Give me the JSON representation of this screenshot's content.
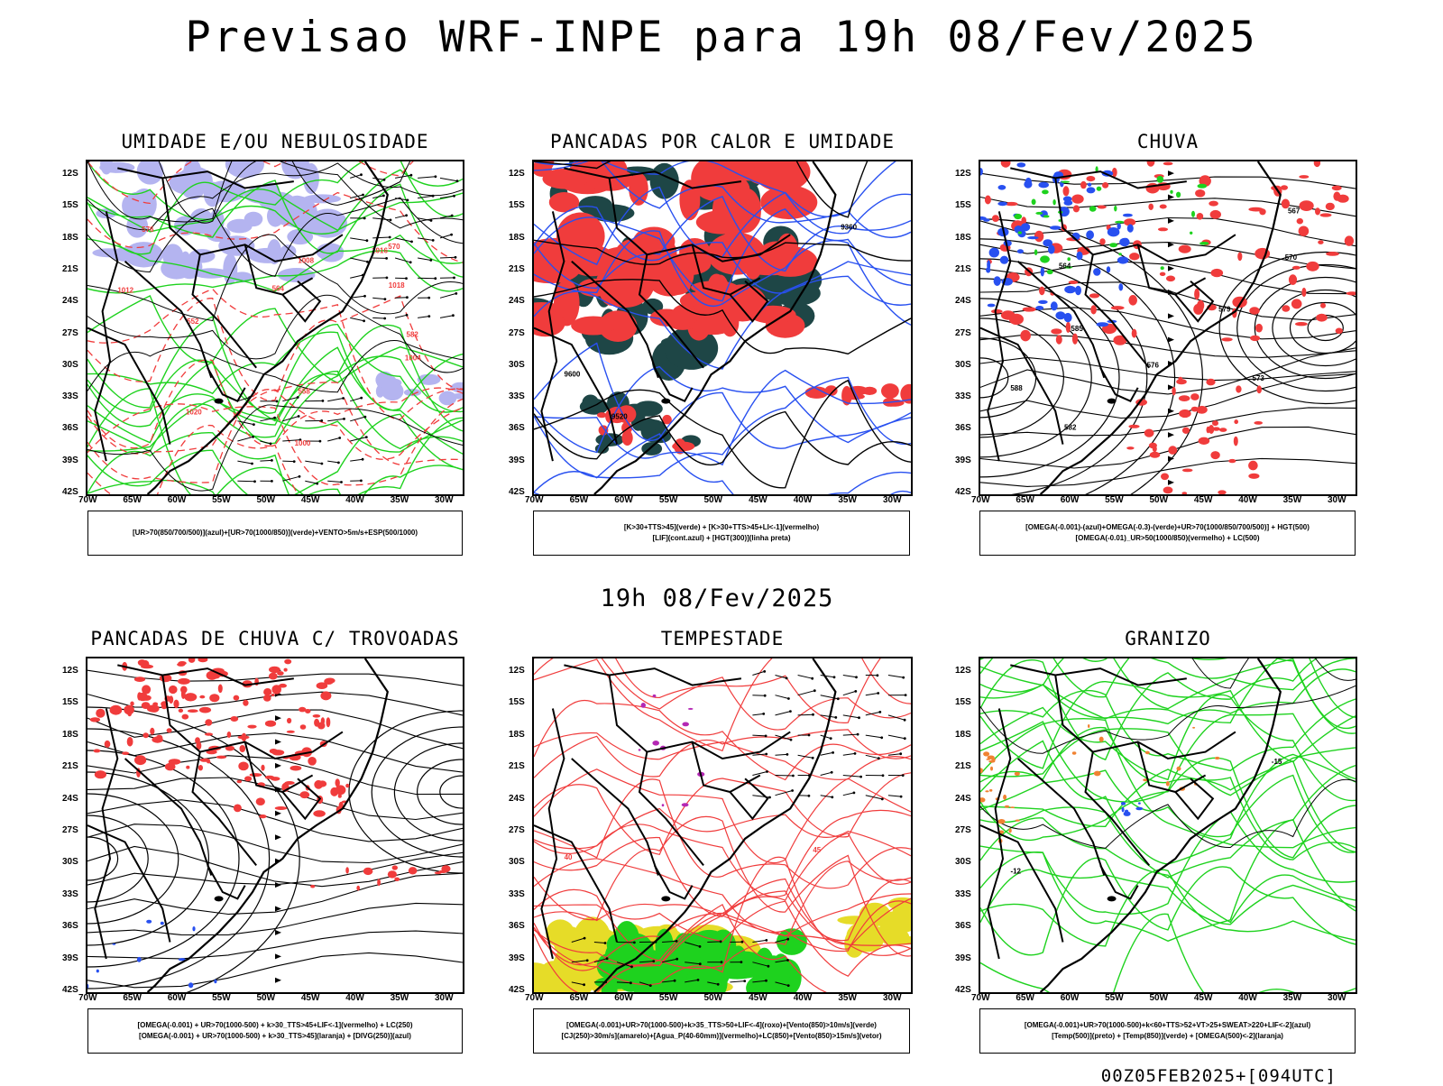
{
  "page": {
    "title": "Previsao WRF-INPE  para 19h 08/Fev/2025",
    "mid_title": "19h 08/Fev/2025",
    "footer": "00Z05FEB2025+[094UTC]"
  },
  "axes": {
    "lat_labels": [
      "12S",
      "15S",
      "18S",
      "21S",
      "24S",
      "27S",
      "30S",
      "33S",
      "36S",
      "39S",
      "42S"
    ],
    "lon_labels": [
      "70W",
      "65W",
      "60W",
      "55W",
      "50W",
      "45W",
      "40W",
      "35W",
      "30W"
    ]
  },
  "colors": {
    "red": "#f03c3c",
    "green": "#1ed21e",
    "blue": "#2850f0",
    "lavender": "#b4b4f0",
    "darkteal": "#1e4646",
    "yellow": "#e6dc28",
    "orange": "#f08232",
    "purple": "#b428b4",
    "black": "#000000"
  },
  "panels": [
    {
      "key": "umidade",
      "title": "UMIDADE E/OU NEBULOSIDADE",
      "legend": [
        "[UR>70(850/700/500)](azul)+[UR>70(1000/850)](verde)+VENTO>5m/s+ESP(500/1000)"
      ],
      "contour_labels": [
        "1012",
        "1008",
        "1000",
        "1016",
        "1020",
        "1018",
        "1004",
        "582",
        "576",
        "570",
        "564",
        "558",
        "552"
      ]
    },
    {
      "key": "pancadas_calor",
      "title": "PANCADAS POR CALOR E UMIDADE",
      "legend": [
        "[K>30+TTS>45](verde) + [K>30+TTS>45+LI<-1](vermelho)",
        "[LIF](cont.azul) + [HGT(300)](linha preta)"
      ],
      "contour_labels": [
        "9600",
        "9520",
        "9360"
      ]
    },
    {
      "key": "chuva",
      "title": "CHUVA",
      "legend": [
        "[OMEGA(-0.001)-(azul)+OMEGA(-0.3)-(verde)+UR>70(1000/850/700/500)] + HGT(500)",
        "[OMEGA(-0.01)_UR>50(1000/850)(vermelho) + LC(500)"
      ],
      "contour_labels": [
        "588",
        "585",
        "582",
        "579",
        "576",
        "573",
        "570",
        "567",
        "564"
      ]
    },
    {
      "key": "pancadas_trovoadas",
      "title": "PANCADAS DE CHUVA C/ TROVOADAS",
      "legend": [
        "[OMEGA(-0.001) + UR>70(1000-500) + k>30_TTS>45+LIF<-1](vermelho) + LC(250)",
        "[OMEGA(-0.001) + UR>70(1000-500) + k>30_TTS>45](laranja) + [DIVG(250)](azul)"
      ],
      "contour_labels": []
    },
    {
      "key": "tempestade",
      "title": "TEMPESTADE",
      "legend": [
        "[OMEGA(-0.001)+UR>70(1000-500)+k>35_TTS>50+LIF<-4](roxo)+[Vento(850)>10m/s](verde)",
        "[CJ(250)>30m/s](amarelo)+[Agua_P(40-60mm)](vermelho)+LC(850)+[Vento(850)>15m/s](vetor)"
      ],
      "contour_labels": [
        "40",
        "45"
      ]
    },
    {
      "key": "granizo",
      "title": "GRANIZO",
      "legend": [
        "[OMEGA(-0.001)+UR>70(1000-500)+k<60+TTS>52+VT>25+SWEAT>220+LIF<-2](azul)",
        "[Temp(500)](preto) + [Temp(850)](verde) + [OMEGA(500)<-2](laranja)"
      ],
      "contour_labels": [
        "-12",
        "-15"
      ]
    }
  ]
}
